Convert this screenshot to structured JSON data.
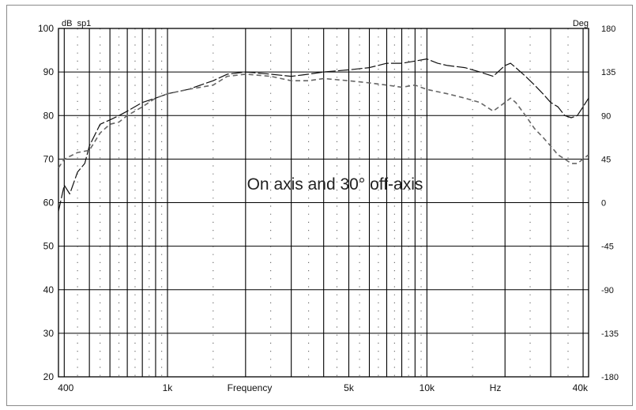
{
  "chart_data": {
    "type": "line",
    "title": "",
    "annotation": "On axis and 30° off-axis",
    "xlabel": "Frequency",
    "x_unit_label": "Hz",
    "y_left_label": "dB  sp1",
    "y_right_label": "Deg",
    "x_scale": "log",
    "xlim": [
      380,
      42000
    ],
    "ylim": [
      20,
      100
    ],
    "y2lim": [
      -180,
      180
    ],
    "x_ticks": [
      {
        "value": 400,
        "label": "400"
      },
      {
        "value": 1000,
        "label": "1k"
      },
      {
        "value": 5000,
        "label": "5k"
      },
      {
        "value": 10000,
        "label": "10k"
      },
      {
        "value": 40000,
        "label": "40k"
      }
    ],
    "y_ticks": [
      "20",
      "30",
      "40",
      "50",
      "60",
      "70",
      "80",
      "90",
      "100"
    ],
    "y2_ticks": [
      "-180",
      "-135",
      "-90",
      "-45",
      "0",
      "45",
      "90",
      "135",
      "180"
    ],
    "grid": true,
    "series": [
      {
        "style": "long-dash",
        "values": [
          [
            380,
            58
          ],
          [
            400,
            64
          ],
          [
            420,
            62
          ],
          [
            450,
            67
          ],
          [
            480,
            69
          ],
          [
            500,
            73
          ],
          [
            550,
            78
          ],
          [
            600,
            79
          ],
          [
            650,
            80
          ],
          [
            700,
            81
          ],
          [
            800,
            83
          ],
          [
            900,
            84
          ],
          [
            1000,
            85
          ],
          [
            1200,
            86
          ],
          [
            1500,
            88
          ],
          [
            1700,
            89.5
          ],
          [
            2000,
            90
          ],
          [
            2500,
            89.5
          ],
          [
            3000,
            89
          ],
          [
            3500,
            89.5
          ],
          [
            4000,
            90
          ],
          [
            5000,
            90.5
          ],
          [
            6000,
            91
          ],
          [
            7000,
            92
          ],
          [
            8000,
            92
          ],
          [
            9000,
            92.5
          ],
          [
            10000,
            93
          ],
          [
            11000,
            92
          ],
          [
            12000,
            91.5
          ],
          [
            14000,
            91
          ],
          [
            16000,
            90
          ],
          [
            18000,
            89
          ],
          [
            20000,
            91.5
          ],
          [
            21000,
            92
          ],
          [
            22000,
            91
          ],
          [
            24000,
            89
          ],
          [
            26000,
            87
          ],
          [
            28000,
            85
          ],
          [
            30000,
            83
          ],
          [
            32000,
            82
          ],
          [
            34000,
            80
          ],
          [
            36000,
            79.5
          ],
          [
            38000,
            80
          ],
          [
            40000,
            82
          ],
          [
            42000,
            84
          ]
        ]
      },
      {
        "style": "dash",
        "values": [
          [
            380,
            68
          ],
          [
            400,
            70
          ],
          [
            450,
            71.5
          ],
          [
            500,
            72
          ],
          [
            550,
            76
          ],
          [
            600,
            78
          ],
          [
            650,
            78.5
          ],
          [
            700,
            80
          ],
          [
            800,
            82
          ],
          [
            900,
            84
          ],
          [
            1000,
            85
          ],
          [
            1200,
            86
          ],
          [
            1500,
            87
          ],
          [
            1700,
            89
          ],
          [
            2000,
            89.5
          ],
          [
            2500,
            89
          ],
          [
            3000,
            88
          ],
          [
            3500,
            88
          ],
          [
            4000,
            88.5
          ],
          [
            5000,
            88
          ],
          [
            6000,
            87.5
          ],
          [
            7000,
            87
          ],
          [
            8000,
            86.5
          ],
          [
            9000,
            87
          ],
          [
            10000,
            86
          ],
          [
            12000,
            85
          ],
          [
            14000,
            84
          ],
          [
            16000,
            83
          ],
          [
            18000,
            81
          ],
          [
            20000,
            83
          ],
          [
            21000,
            84
          ],
          [
            22000,
            83
          ],
          [
            24000,
            80
          ],
          [
            26000,
            77
          ],
          [
            28000,
            75
          ],
          [
            30000,
            73
          ],
          [
            32000,
            71
          ],
          [
            34000,
            70
          ],
          [
            36000,
            69
          ],
          [
            38000,
            69
          ],
          [
            40000,
            70
          ],
          [
            42000,
            71
          ]
        ]
      }
    ]
  }
}
